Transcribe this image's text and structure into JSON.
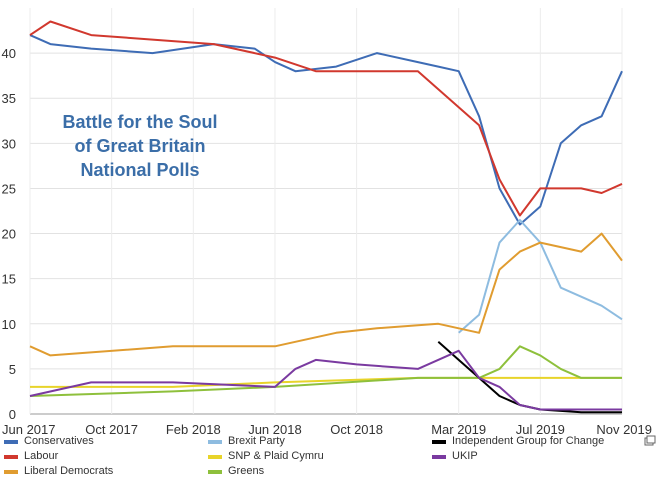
{
  "chart_data": {
    "type": "line",
    "title_lines": [
      "Battle for the Soul",
      "of Great Britain",
      "National Polls"
    ],
    "xlabel": "",
    "ylabel": "",
    "ylim": [
      0,
      45
    ],
    "y_ticks": [
      "0",
      "5",
      "10",
      "15",
      "20",
      "25",
      "30",
      "35",
      "40"
    ],
    "x_ticks": [
      {
        "label": "Jun 2017",
        "x": "2017-06"
      },
      {
        "label": "Oct 2017",
        "x": "2017-10"
      },
      {
        "label": "Feb 2018",
        "x": "2018-02"
      },
      {
        "label": "Jun 2018",
        "x": "2018-06"
      },
      {
        "label": "Oct 2018",
        "x": "2018-10"
      },
      {
        "label": "Mar 2019",
        "x": "2019-03"
      },
      {
        "label": "Jul 2019",
        "x": "2019-07"
      },
      {
        "label": "Nov 2019",
        "x": "2019-11"
      }
    ],
    "grid": true,
    "legend_position": "bottom",
    "series": [
      {
        "name": "Conservatives",
        "color": "#3e6cb5",
        "points": [
          [
            "2017-06",
            42
          ],
          [
            "2017-07",
            41
          ],
          [
            "2017-09",
            40.5
          ],
          [
            "2017-12",
            40
          ],
          [
            "2018-03",
            41
          ],
          [
            "2018-05",
            40.5
          ],
          [
            "2018-06",
            39
          ],
          [
            "2018-07",
            38
          ],
          [
            "2018-09",
            38.5
          ],
          [
            "2018-11",
            40
          ],
          [
            "2019-01",
            39
          ],
          [
            "2019-02",
            38.5
          ],
          [
            "2019-03",
            38
          ],
          [
            "2019-04",
            33
          ],
          [
            "2019-05",
            25
          ],
          [
            "2019-06",
            21
          ],
          [
            "2019-07",
            23
          ],
          [
            "2019-08",
            30
          ],
          [
            "2019-09",
            32
          ],
          [
            "2019-10",
            33
          ],
          [
            "2019-11",
            38
          ]
        ]
      },
      {
        "name": "Labour",
        "color": "#d1382e",
        "points": [
          [
            "2017-06",
            42
          ],
          [
            "2017-07",
            43.5
          ],
          [
            "2017-09",
            42
          ],
          [
            "2017-12",
            41.5
          ],
          [
            "2018-03",
            41
          ],
          [
            "2018-06",
            39.5
          ],
          [
            "2018-08",
            38
          ],
          [
            "2018-11",
            38
          ],
          [
            "2019-01",
            38
          ],
          [
            "2019-02",
            36
          ],
          [
            "2019-03",
            34
          ],
          [
            "2019-04",
            32
          ],
          [
            "2019-05",
            26
          ],
          [
            "2019-06",
            22
          ],
          [
            "2019-07",
            25
          ],
          [
            "2019-08",
            25
          ],
          [
            "2019-09",
            25
          ],
          [
            "2019-10",
            24.5
          ],
          [
            "2019-11",
            25.5
          ]
        ]
      },
      {
        "name": "Brexit Party",
        "color": "#8ebce0",
        "points": [
          [
            "2019-03",
            9
          ],
          [
            "2019-04",
            11
          ],
          [
            "2019-05",
            19
          ],
          [
            "2019-06",
            21.5
          ],
          [
            "2019-07",
            19
          ],
          [
            "2019-08",
            14
          ],
          [
            "2019-09",
            13
          ],
          [
            "2019-10",
            12
          ],
          [
            "2019-11",
            10.5
          ]
        ]
      },
      {
        "name": "SNP & Plaid Cymru",
        "color": "#e8d42a",
        "points": [
          [
            "2017-06",
            3
          ],
          [
            "2018-01",
            3
          ],
          [
            "2018-06",
            3.5
          ],
          [
            "2019-01",
            4
          ],
          [
            "2019-06",
            4
          ],
          [
            "2019-11",
            4
          ]
        ]
      },
      {
        "name": "Liberal Democrats",
        "color": "#e09c30",
        "points": [
          [
            "2017-06",
            7.5
          ],
          [
            "2017-07",
            6.5
          ],
          [
            "2018-01",
            7.5
          ],
          [
            "2018-06",
            7.5
          ],
          [
            "2018-09",
            9
          ],
          [
            "2018-11",
            9.5
          ],
          [
            "2019-02",
            10
          ],
          [
            "2019-04",
            9
          ],
          [
            "2019-05",
            16
          ],
          [
            "2019-06",
            18
          ],
          [
            "2019-07",
            19
          ],
          [
            "2019-08",
            18.5
          ],
          [
            "2019-09",
            18
          ],
          [
            "2019-10",
            20
          ],
          [
            "2019-11",
            17
          ]
        ]
      },
      {
        "name": "Greens",
        "color": "#8ec03c",
        "points": [
          [
            "2017-06",
            2
          ],
          [
            "2018-01",
            2.5
          ],
          [
            "2018-06",
            3
          ],
          [
            "2019-01",
            4
          ],
          [
            "2019-04",
            4
          ],
          [
            "2019-05",
            5
          ],
          [
            "2019-06",
            7.5
          ],
          [
            "2019-07",
            6.5
          ],
          [
            "2019-08",
            5
          ],
          [
            "2019-09",
            4
          ],
          [
            "2019-11",
            4
          ]
        ]
      },
      {
        "name": "Independent Group for Change",
        "color": "#000000",
        "points": [
          [
            "2019-02",
            8
          ],
          [
            "2019-03",
            6
          ],
          [
            "2019-04",
            4
          ],
          [
            "2019-05",
            2
          ],
          [
            "2019-06",
            1
          ],
          [
            "2019-07",
            0.5
          ],
          [
            "2019-09",
            0.2
          ],
          [
            "2019-11",
            0.2
          ]
        ]
      },
      {
        "name": "UKIP",
        "color": "#7a3aa0",
        "points": [
          [
            "2017-06",
            2
          ],
          [
            "2017-09",
            3.5
          ],
          [
            "2018-01",
            3.5
          ],
          [
            "2018-06",
            3
          ],
          [
            "2018-07",
            5
          ],
          [
            "2018-08",
            6
          ],
          [
            "2018-10",
            5.5
          ],
          [
            "2019-01",
            5
          ],
          [
            "2019-03",
            7
          ],
          [
            "2019-04",
            4
          ],
          [
            "2019-05",
            3
          ],
          [
            "2019-06",
            1
          ],
          [
            "2019-07",
            0.5
          ],
          [
            "2019-11",
            0.5
          ]
        ]
      }
    ]
  },
  "legend_rows": [
    [
      "Conservatives",
      "Brexit Party",
      "Independent Group for Change"
    ],
    [
      "Labour",
      "SNP & Plaid Cymru",
      "UKIP"
    ],
    [
      "Liberal Democrats",
      "Greens"
    ]
  ]
}
